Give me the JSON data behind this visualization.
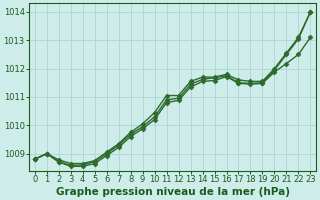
{
  "xlabel": "Graphe pression niveau de la mer (hPa)",
  "xlim": [
    -0.5,
    23.5
  ],
  "ylim": [
    1008.4,
    1014.3
  ],
  "yticks": [
    1009,
    1010,
    1011,
    1012,
    1013,
    1014
  ],
  "xticks": [
    0,
    1,
    2,
    3,
    4,
    5,
    6,
    7,
    8,
    9,
    10,
    11,
    12,
    13,
    14,
    15,
    16,
    17,
    18,
    19,
    20,
    21,
    22,
    23
  ],
  "bg_color": "#ceecea",
  "grid_color": "#b0d8d4",
  "line_color": "#2d6a2d",
  "series1_y": [
    1008.8,
    1009.0,
    1008.78,
    1008.65,
    1008.65,
    1008.75,
    1009.05,
    1009.35,
    1009.75,
    1010.05,
    1010.45,
    1011.05,
    1011.05,
    1011.55,
    1011.7,
    1011.7,
    1011.8,
    1011.6,
    1011.55,
    1011.55,
    1012.0,
    1012.55,
    1013.1,
    1014.0
  ],
  "series2_y": [
    1008.8,
    1009.0,
    1008.72,
    1008.58,
    1008.6,
    1008.72,
    1009.0,
    1009.3,
    1009.68,
    1009.95,
    1010.3,
    1010.9,
    1010.95,
    1011.45,
    1011.62,
    1011.68,
    1011.75,
    1011.5,
    1011.48,
    1011.5,
    1011.95,
    1012.5,
    1013.05,
    1014.0
  ],
  "series3_y": [
    1008.8,
    1009.0,
    1008.7,
    1008.55,
    1008.55,
    1008.65,
    1008.93,
    1009.22,
    1009.6,
    1009.88,
    1010.2,
    1010.8,
    1010.88,
    1011.35,
    1011.55,
    1011.58,
    1011.72,
    1011.48,
    1011.45,
    1011.48,
    1011.88,
    1012.18,
    1012.5,
    1013.1
  ],
  "markersize": 2.5,
  "linewidth": 1.0,
  "font_color": "#1a5c1a",
  "tick_fontsize": 6.0,
  "label_fontsize": 7.5
}
